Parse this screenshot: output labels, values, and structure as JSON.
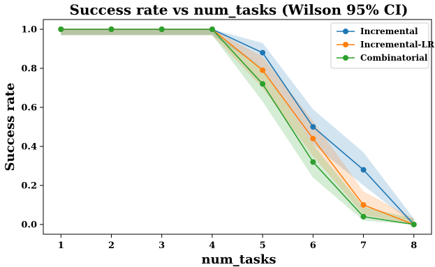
{
  "chart_data": {
    "type": "line",
    "title": "Success rate vs num_tasks (Wilson 95% CI)",
    "xlabel": "num_tasks",
    "ylabel": "Success rate",
    "x": [
      1,
      2,
      3,
      4,
      5,
      6,
      7,
      8
    ],
    "xlim": [
      0.65,
      8.35
    ],
    "ylim": [
      -0.05,
      1.05
    ],
    "xticks": [
      "1",
      "2",
      "3",
      "4",
      "5",
      "6",
      "7",
      "8"
    ],
    "yticks": [
      "0.0",
      "0.2",
      "0.4",
      "0.6",
      "0.8",
      "1.0"
    ],
    "grid": false,
    "legend_position": "top-right",
    "series": [
      {
        "name": "Incremental",
        "color": "#1f77b4",
        "values": [
          1.0,
          1.0,
          1.0,
          1.0,
          0.88,
          0.5,
          0.28,
          0.0
        ],
        "ci_lower": [
          0.97,
          0.97,
          0.97,
          0.97,
          0.8,
          0.41,
          0.2,
          0.0
        ],
        "ci_upper": [
          1.0,
          1.0,
          1.0,
          1.0,
          0.93,
          0.59,
          0.37,
          0.03
        ]
      },
      {
        "name": "Incremental-LR",
        "color": "#ff7f0e",
        "values": [
          1.0,
          1.0,
          1.0,
          1.0,
          0.79,
          0.44,
          0.1,
          0.0
        ],
        "ci_lower": [
          0.97,
          0.97,
          0.97,
          0.97,
          0.7,
          0.35,
          0.05,
          0.0
        ],
        "ci_upper": [
          1.0,
          1.0,
          1.0,
          1.0,
          0.86,
          0.53,
          0.17,
          0.03
        ]
      },
      {
        "name": "Combinatorial",
        "color": "#2ca02c",
        "values": [
          1.0,
          1.0,
          1.0,
          1.0,
          0.72,
          0.32,
          0.04,
          0.0
        ],
        "ci_lower": [
          0.97,
          0.97,
          0.97,
          0.97,
          0.63,
          0.24,
          0.02,
          0.0
        ],
        "ci_upper": [
          1.0,
          1.0,
          1.0,
          1.0,
          0.8,
          0.41,
          0.09,
          0.03
        ]
      }
    ]
  }
}
